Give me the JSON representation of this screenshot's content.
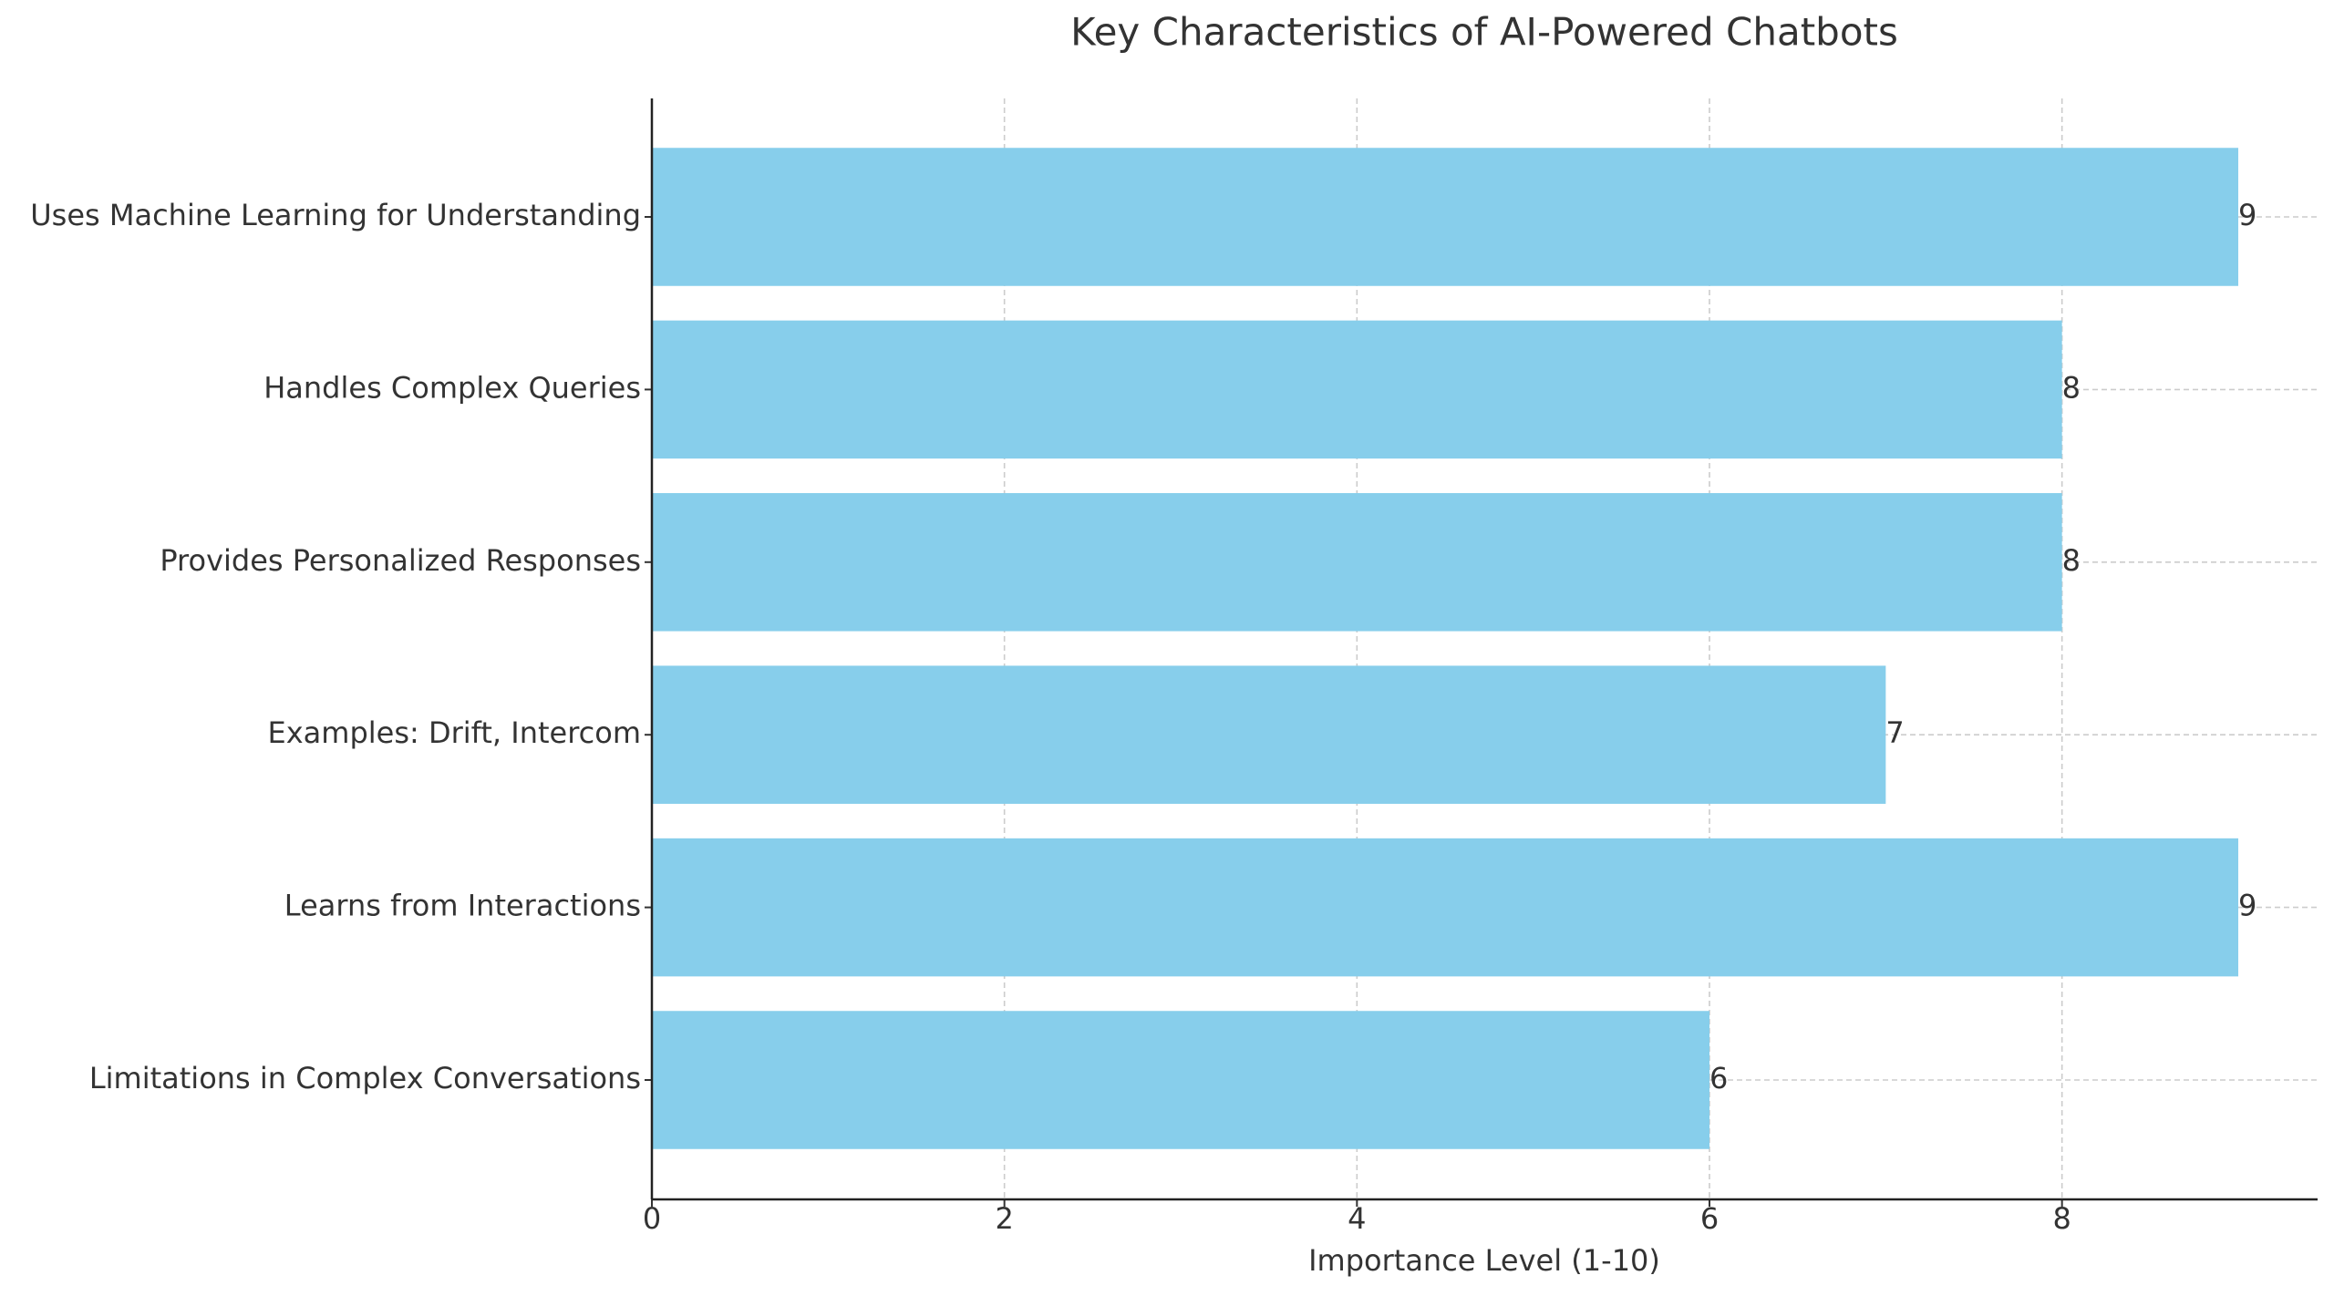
{
  "chart_data": {
    "type": "bar",
    "orientation": "horizontal",
    "title": "Key Characteristics of AI-Powered Chatbots",
    "xlabel": "Importance Level (1-10)",
    "categories": [
      "Uses Machine Learning for Understanding",
      "Handles Complex Queries",
      "Provides Personalized Responses",
      "Examples: Drift, Intercom",
      "Learns from Interactions",
      "Limitations in Complex Conversations"
    ],
    "values": [
      9,
      8,
      8,
      7,
      9,
      6
    ],
    "color": "#87ceeb",
    "xlim": [
      0,
      9.45
    ],
    "xticks": [
      0,
      2,
      4,
      6,
      8
    ],
    "grid": true
  }
}
